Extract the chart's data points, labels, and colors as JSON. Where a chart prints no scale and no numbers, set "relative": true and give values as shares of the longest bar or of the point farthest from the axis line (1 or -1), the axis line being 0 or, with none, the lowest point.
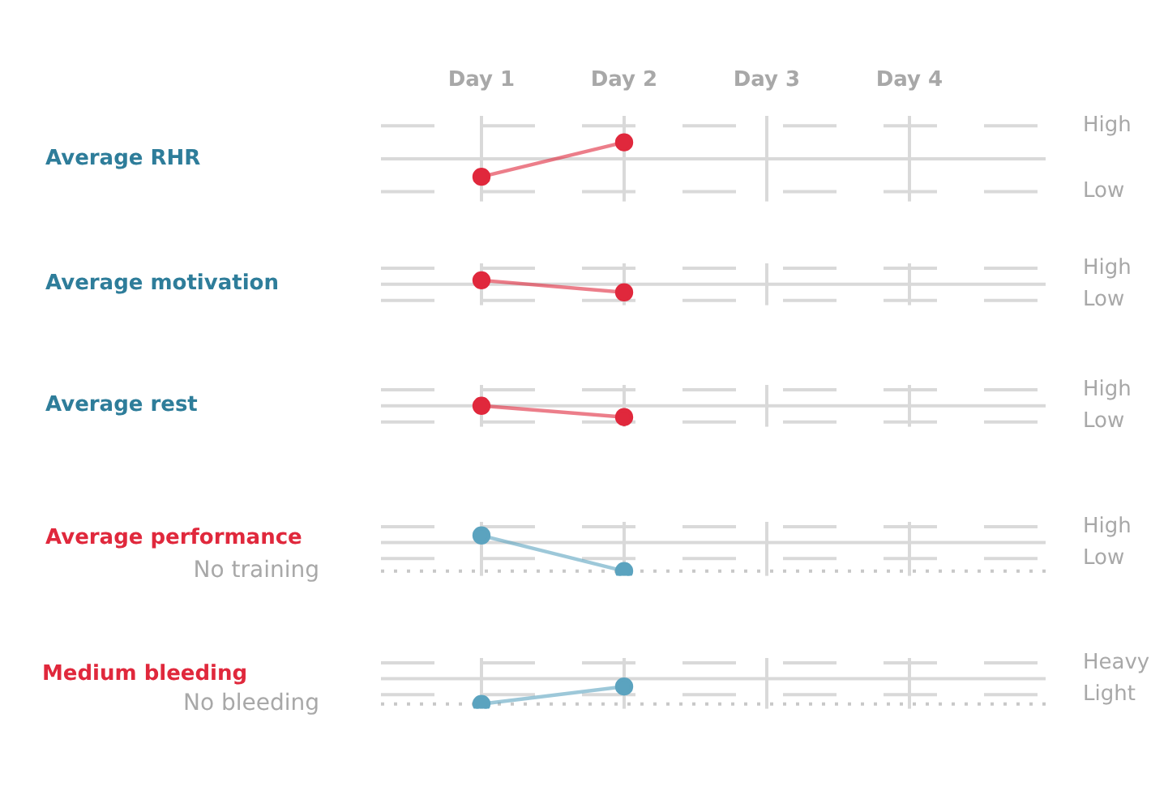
{
  "chart_data": [
    {
      "type": "line",
      "relative": true,
      "categories": [
        "Day 1",
        "Day 2",
        "Day 3",
        "Day 4"
      ],
      "tick_labels": "x",
      "ylabel": "Average RHR",
      "grid": "x",
      "marker": "circle",
      "ref_lines": [
        {
          "axis": "y",
          "value": 1.82,
          "label": "High",
          "line_style": "dashed"
        },
        {
          "axis": "y",
          "value": -1.82,
          "label": "Low",
          "line_style": "dashed"
        }
      ],
      "series": [
        {
          "color": "#e0283c",
          "values": [
            -1,
            0.91,
            null,
            null
          ]
        }
      ]
    },
    {
      "type": "line",
      "relative": true,
      "categories": [
        null,
        null,
        null,
        null
      ],
      "ylabel": "Average motivation",
      "grid": "x",
      "marker": "circle",
      "ref_lines": [
        {
          "axis": "y",
          "value": 2,
          "label": "High",
          "line_style": "dashed"
        },
        {
          "axis": "y",
          "value": -2,
          "label": "Low",
          "line_style": "dashed"
        }
      ],
      "series": [
        {
          "color": "#e0283c",
          "values": [
            0.5,
            -1,
            null,
            null
          ]
        }
      ]
    },
    {
      "type": "line",
      "relative": true,
      "categories": [
        null,
        null,
        null,
        null
      ],
      "ylabel": "Average rest",
      "grid": "x",
      "marker": "circle",
      "ref_lines": [
        {
          "axis": "y",
          "value": 1.43,
          "label": "High",
          "line_style": "dashed"
        },
        {
          "axis": "y",
          "value": -1.43,
          "label": "Low",
          "line_style": "dashed"
        }
      ],
      "series": [
        {
          "color": "#e0283c",
          "values": [
            0,
            -1,
            null,
            null
          ]
        }
      ]
    },
    {
      "type": "line",
      "relative": true,
      "categories": [
        null,
        null,
        null,
        null
      ],
      "ylabel": "Average performance",
      "grid": "x",
      "marker": "circle",
      "ref_lines": [
        {
          "axis": "y",
          "value": 0.56,
          "label": "High",
          "line_style": "dashed"
        },
        {
          "axis": "y",
          "value": -0.56,
          "label": "Low",
          "line_style": "dashed"
        },
        {
          "axis": "y",
          "value": -1,
          "label": "No training",
          "line_style": "dotted"
        }
      ],
      "series": [
        {
          "color": "#5ba3bf",
          "values": [
            0.25,
            -1,
            null,
            null
          ]
        }
      ]
    },
    {
      "type": "line",
      "relative": true,
      "categories": [
        null,
        null,
        null,
        null
      ],
      "ylabel": "Medium bleeding",
      "grid": "x",
      "marker": "circle",
      "ref_lines": [
        {
          "axis": "y",
          "value": 0.63,
          "label": "Heavy",
          "line_style": "dashed"
        },
        {
          "axis": "y",
          "value": -0.63,
          "label": "Light",
          "line_style": "dashed"
        },
        {
          "axis": "y",
          "value": -1,
          "label": "No bleeding",
          "line_style": "dotted"
        }
      ],
      "series": [
        {
          "color": "#5ba3bf",
          "values": [
            -1,
            -0.31,
            null,
            null
          ]
        }
      ]
    }
  ]
}
